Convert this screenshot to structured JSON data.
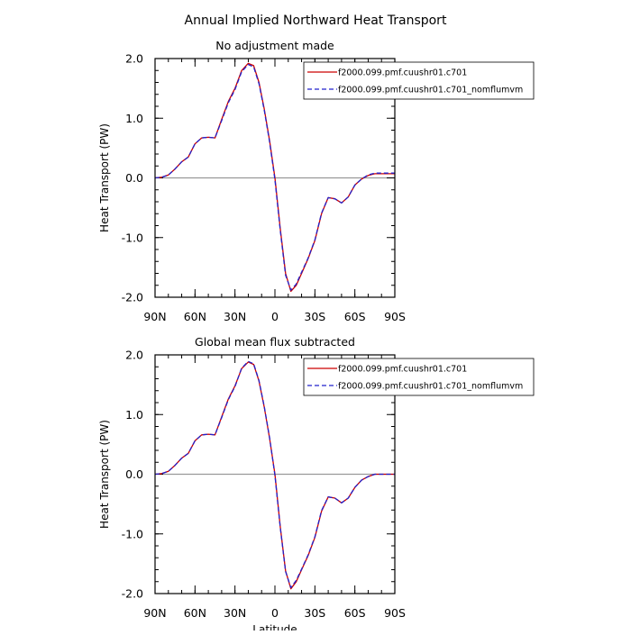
{
  "figure": {
    "title": "Annual Implied Northward Heat Transport"
  },
  "chart_data": [
    {
      "type": "line",
      "title": "No adjustment made",
      "xlabel": "",
      "ylabel": "Heat Transport (PW)",
      "xlim": [
        -90,
        90
      ],
      "ylim": [
        -2.0,
        2.0
      ],
      "x_ticks": [
        {
          "value": -90,
          "label": "90N"
        },
        {
          "value": -60,
          "label": "60N"
        },
        {
          "value": -30,
          "label": "30N"
        },
        {
          "value": 0,
          "label": "0"
        },
        {
          "value": 30,
          "label": "30S"
        },
        {
          "value": 60,
          "label": "60S"
        },
        {
          "value": 90,
          "label": "90S"
        }
      ],
      "y_ticks": [
        {
          "value": 2.0,
          "label": "2.0"
        },
        {
          "value": 1.0,
          "label": "1.0"
        },
        {
          "value": 0.0,
          "label": "0.0"
        },
        {
          "value": -1.0,
          "label": "-1.0"
        },
        {
          "value": -2.0,
          "label": "-2.0"
        }
      ],
      "zero_line": true,
      "legend_position": "top-right",
      "x": [
        -90,
        -85,
        -80,
        -75,
        -70,
        -65,
        -60,
        -55,
        -50,
        -45,
        -40,
        -35,
        -30,
        -25,
        -20,
        -16,
        -12,
        -8,
        -4,
        0,
        4,
        8,
        12,
        16,
        20,
        25,
        30,
        35,
        40,
        45,
        50,
        55,
        60,
        65,
        70,
        75,
        80,
        85,
        90
      ],
      "series": [
        {
          "name": "f2000.099.pmf.cuushr01.c701",
          "color": "#cc0000",
          "dash": "solid",
          "values": [
            0.0,
            0.01,
            0.05,
            0.15,
            0.27,
            0.35,
            0.57,
            0.67,
            0.68,
            0.67,
            0.98,
            1.28,
            1.5,
            1.8,
            1.92,
            1.88,
            1.6,
            1.15,
            0.62,
            0.0,
            -0.85,
            -1.6,
            -1.9,
            -1.8,
            -1.6,
            -1.35,
            -1.05,
            -0.6,
            -0.33,
            -0.35,
            -0.42,
            -0.32,
            -0.12,
            -0.02,
            0.04,
            0.07,
            0.07,
            0.07,
            0.07
          ]
        },
        {
          "name": "f2000.099.pmf.cuushr01.c701_nomflumvm",
          "color": "#2222cc",
          "dash": "dashed",
          "values": [
            0.0,
            0.01,
            0.05,
            0.15,
            0.27,
            0.35,
            0.57,
            0.67,
            0.68,
            0.67,
            0.96,
            1.26,
            1.48,
            1.78,
            1.9,
            1.86,
            1.58,
            1.13,
            0.6,
            -0.03,
            -0.88,
            -1.63,
            -1.88,
            -1.78,
            -1.58,
            -1.34,
            -1.04,
            -0.59,
            -0.33,
            -0.35,
            -0.42,
            -0.32,
            -0.12,
            -0.02,
            0.05,
            0.08,
            0.08,
            0.08,
            0.08
          ]
        }
      ]
    },
    {
      "type": "line",
      "title": "Global mean flux subtracted",
      "xlabel": "Latitude",
      "ylabel": "Heat Transport (PW)",
      "xlim": [
        -90,
        90
      ],
      "ylim": [
        -2.0,
        2.0
      ],
      "x_ticks": [
        {
          "value": -90,
          "label": "90N"
        },
        {
          "value": -60,
          "label": "60N"
        },
        {
          "value": -30,
          "label": "30N"
        },
        {
          "value": 0,
          "label": "0"
        },
        {
          "value": 30,
          "label": "30S"
        },
        {
          "value": 60,
          "label": "60S"
        },
        {
          "value": 90,
          "label": "90S"
        }
      ],
      "y_ticks": [
        {
          "value": 2.0,
          "label": "2.0"
        },
        {
          "value": 1.0,
          "label": "1.0"
        },
        {
          "value": 0.0,
          "label": "0.0"
        },
        {
          "value": -1.0,
          "label": "-1.0"
        },
        {
          "value": -2.0,
          "label": "-2.0"
        }
      ],
      "zero_line": true,
      "legend_position": "top-right",
      "x": [
        -90,
        -85,
        -80,
        -75,
        -70,
        -65,
        -60,
        -55,
        -50,
        -45,
        -40,
        -35,
        -30,
        -25,
        -20,
        -16,
        -12,
        -8,
        -4,
        0,
        4,
        8,
        12,
        16,
        20,
        25,
        30,
        35,
        40,
        45,
        50,
        55,
        60,
        65,
        70,
        75,
        80,
        85,
        90
      ],
      "series": [
        {
          "name": "f2000.099.pmf.cuushr01.c701",
          "color": "#cc0000",
          "dash": "solid",
          "values": [
            0.0,
            0.01,
            0.05,
            0.15,
            0.27,
            0.35,
            0.56,
            0.66,
            0.67,
            0.66,
            0.96,
            1.26,
            1.48,
            1.77,
            1.88,
            1.84,
            1.56,
            1.12,
            0.6,
            0.0,
            -0.88,
            -1.62,
            -1.92,
            -1.8,
            -1.6,
            -1.36,
            -1.06,
            -0.62,
            -0.38,
            -0.4,
            -0.48,
            -0.4,
            -0.22,
            -0.1,
            -0.04,
            0.0,
            0.0,
            0.0,
            0.0
          ]
        },
        {
          "name": "f2000.099.pmf.cuushr01.c701_nomflumvm",
          "color": "#2222cc",
          "dash": "dashed",
          "values": [
            0.0,
            0.01,
            0.05,
            0.15,
            0.27,
            0.35,
            0.56,
            0.66,
            0.67,
            0.66,
            0.95,
            1.25,
            1.47,
            1.78,
            1.89,
            1.85,
            1.57,
            1.13,
            0.61,
            -0.02,
            -0.89,
            -1.63,
            -1.9,
            -1.78,
            -1.59,
            -1.35,
            -1.05,
            -0.61,
            -0.38,
            -0.4,
            -0.48,
            -0.4,
            -0.22,
            -0.1,
            -0.04,
            0.0,
            0.0,
            0.0,
            0.0
          ]
        }
      ]
    }
  ]
}
